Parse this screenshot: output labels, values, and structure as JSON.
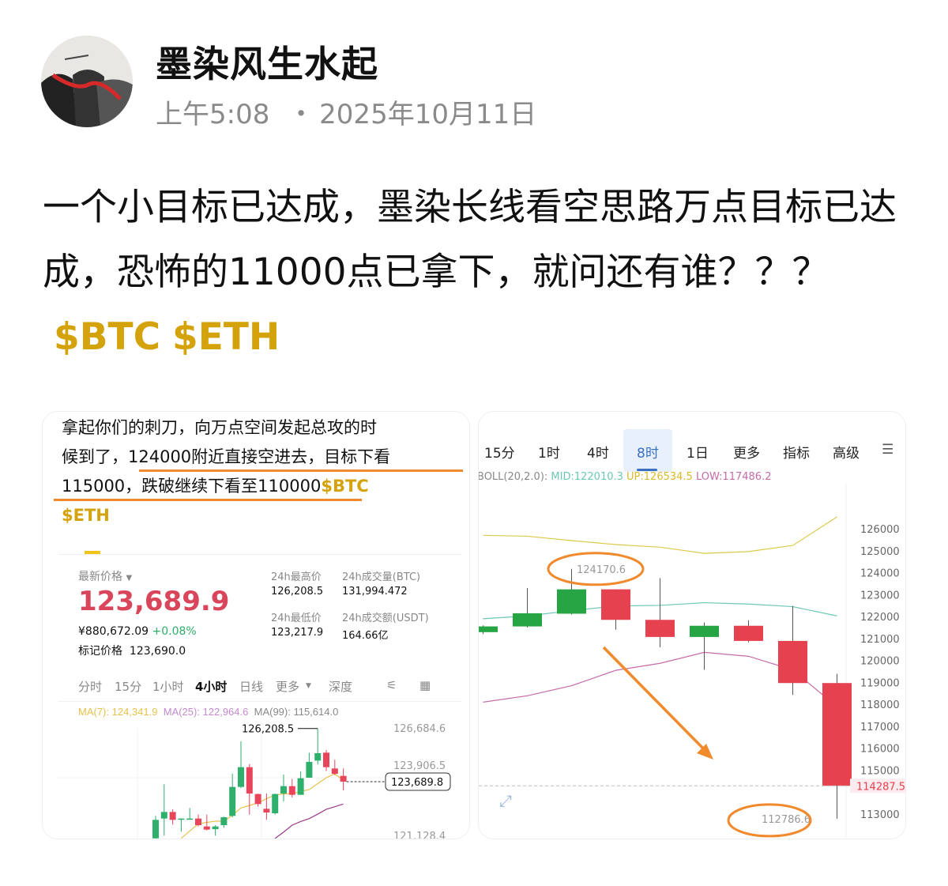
{
  "author": {
    "name": "墨染风生水起",
    "time": "上午5:08",
    "date_sep": "・",
    "date": "2025年10月11日"
  },
  "post": {
    "text": "一个小目标已达成，墨染长线看空思路万点目标已达成，恐怖的11000点已拿下，就问还有谁？？？",
    "tags": [
      "$BTC",
      "$ETH"
    ]
  },
  "left_image": {
    "caption_lines": [
      "拿起你们的刺刀，向万点空间发起总攻的时",
      "候到了，124000附近直接空进去，目标下看",
      "115000，跌破继续下看至110000"
    ],
    "caption_tags": [
      "$BTC",
      "$ETH"
    ],
    "latest_label": "最新价格",
    "price": "123,689.9",
    "cny": "¥880,672.09",
    "change": "+0.08%",
    "mark_label": "标记价格",
    "mark_price": "123,690.0",
    "stats": [
      {
        "label": "24h最高价",
        "value": "126,208.5"
      },
      {
        "label": "24h成交量(BTC)",
        "value": "131,994.472"
      },
      {
        "label": "24h最低价",
        "value": "123,217.9"
      },
      {
        "label": "24h成交额(USDT)",
        "value": "164.66亿"
      }
    ],
    "tabs": [
      "分时",
      "15分",
      "1小时",
      "4小时",
      "日线",
      "更多",
      "深度"
    ],
    "active_tab": "4小时",
    "ma": {
      "ma7": "MA(7): 124,341.9",
      "ma25": "MA(25): 122,964.6",
      "ma99": "MA(99): 115,614.0"
    },
    "axis_labels": [
      "126,684.6",
      "123,906.5",
      "121,128.4"
    ],
    "high_label": "126,208.5",
    "current_label": "123,689.8",
    "colors": {
      "up": "#2eaf6b",
      "down": "#e8455a",
      "price": "#d9455a",
      "ma7": "#e6c24d",
      "ma25": "#c58ad0",
      "ma99": "#9a3a8a"
    },
    "candles": [
      [
        121004,
        122066,
        120900,
        121878
      ],
      [
        121941,
        123564,
        121129,
        122253
      ],
      [
        122253,
        122378,
        121654,
        121878
      ],
      [
        121916,
        121941,
        121316,
        121941
      ],
      [
        121900,
        122440,
        121900,
        121941
      ],
      [
        121941,
        122128,
        121566,
        121628
      ],
      [
        121566,
        122128,
        121379,
        121416
      ],
      [
        121441,
        121628,
        121129,
        121566
      ],
      [
        121628,
        122028,
        121503,
        122003
      ],
      [
        122066,
        124063,
        122003,
        123439
      ],
      [
        123439,
        125599,
        123377,
        124375
      ],
      [
        124375,
        124525,
        122128,
        123127
      ],
      [
        123102,
        123127,
        122502,
        122627
      ],
      [
        122403,
        123127,
        121878,
        122228
      ],
      [
        122190,
        123127,
        122128,
        123102
      ],
      [
        123127,
        124026,
        122752,
        123476
      ],
      [
        123476,
        123814,
        122940,
        123065
      ],
      [
        123065,
        124176,
        123065,
        123851
      ],
      [
        123876,
        125062,
        123876,
        124625
      ],
      [
        124687,
        126208.5,
        124500,
        125037
      ],
      [
        125062,
        125187,
        124188,
        124375
      ],
      [
        124313,
        124725,
        124001,
        124063
      ],
      [
        123963,
        124313,
        123277,
        123689.9
      ]
    ],
    "ma7_line": [
      null,
      null,
      null,
      121004,
      121350,
      121690,
      121760,
      121816,
      121816,
      122100,
      122440,
      122560,
      122690,
      122880,
      123065,
      123100,
      123127,
      123220,
      123315,
      123600,
      123876,
      124063,
      123750
    ],
    "ma99_line": [
      null,
      null,
      null,
      null,
      null,
      null,
      null,
      null,
      null,
      null,
      null,
      null,
      null,
      null,
      121000,
      121300,
      121628,
      121800,
      121941,
      122150,
      122378,
      122500,
      122627
    ]
  },
  "right_image": {
    "tabs": [
      "15分",
      "1时",
      "4时",
      "8时",
      "1日",
      "更多",
      "指标",
      "高级"
    ],
    "active_tab": "8时",
    "boll": {
      "label": "BOLL(20,2.0):",
      "mid": "MID:122010.3",
      "up": "UP:126534.5",
      "low": "LOW:117486.2"
    },
    "y_ticks": [
      "126000",
      "125000",
      "124000",
      "123000",
      "122000",
      "121000",
      "120000",
      "119000",
      "118000",
      "117000",
      "116000",
      "115000",
      "113000"
    ],
    "current_price": "114287.5",
    "high_annotation": "124170.6",
    "low_annotation": "112786.6",
    "colors": {
      "up": "#27a444",
      "down": "#e5414f",
      "mid": "#6cc7b4",
      "upper": "#dccb4a",
      "lower": "#c56ba8",
      "annotation": "#f08a2c",
      "active_tab_bg": "#e8f0fb",
      "active_tab_text": "#3a6fc4"
    },
    "candles": [
      [
        121290,
        121600,
        121200,
        121550
      ],
      [
        121550,
        123300,
        121500,
        122150
      ],
      [
        122130,
        124170.6,
        122090,
        123240
      ],
      [
        123240,
        123240,
        121400,
        121850
      ],
      [
        121850,
        123750,
        120600,
        121070
      ],
      [
        121070,
        121730,
        119570,
        121580
      ],
      [
        121580,
        121830,
        120830,
        120890
      ],
      [
        120890,
        122480,
        118430,
        118970
      ],
      [
        118970,
        119390,
        112786.6,
        114287.5
      ]
    ],
    "boll_upper": [
      125700,
      125660,
      125460,
      125280,
      125160,
      124880,
      124960,
      125240,
      126540
    ],
    "boll_mid": [
      121900,
      122030,
      122270,
      122480,
      122510,
      122630,
      122570,
      122450,
      122030
    ],
    "boll_lower": [
      118100,
      118390,
      118850,
      119550,
      119870,
      120370,
      120190,
      119570,
      117890
    ]
  }
}
